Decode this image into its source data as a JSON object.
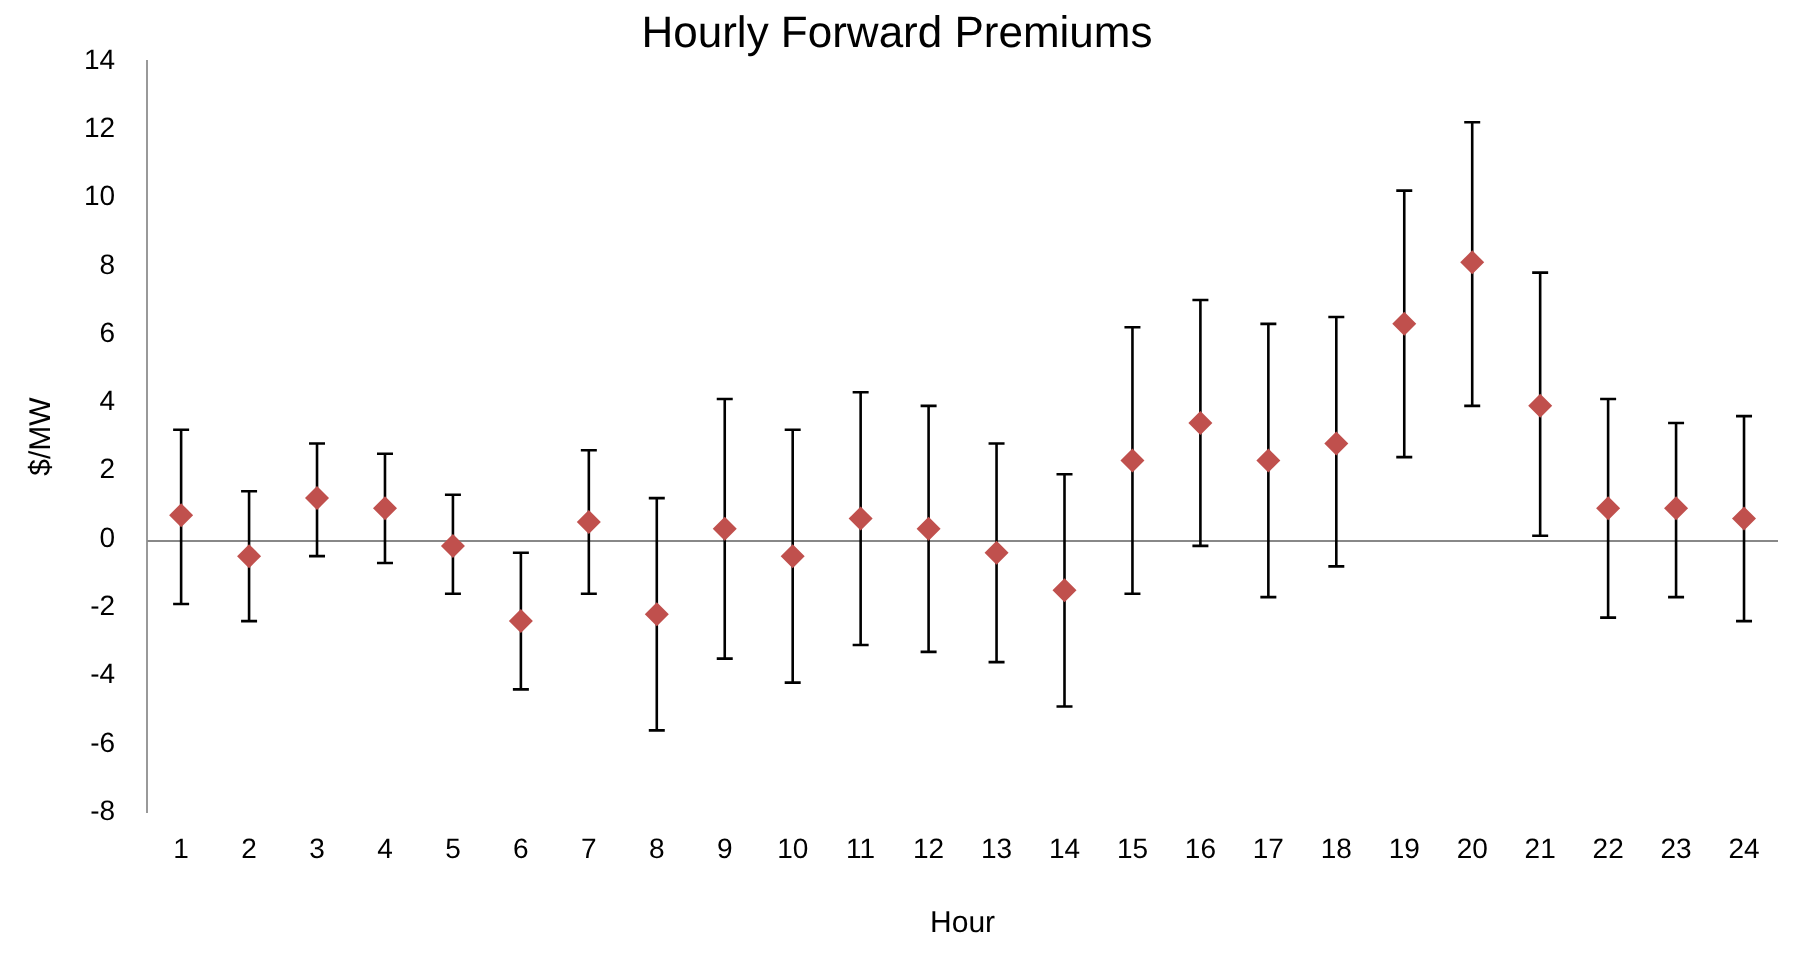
{
  "chart_data": {
    "type": "scatter",
    "title": "Hourly Forward Premiums",
    "xlabel": "Hour",
    "ylabel": "$/MW",
    "categories": [
      "1",
      "2",
      "3",
      "4",
      "5",
      "6",
      "7",
      "8",
      "9",
      "10",
      "11",
      "12",
      "13",
      "14",
      "15",
      "16",
      "17",
      "18",
      "19",
      "20",
      "21",
      "22",
      "23",
      "24"
    ],
    "series": [
      {
        "color": "#c0504d",
        "values": [
          0.7,
          -0.5,
          1.2,
          0.9,
          -0.2,
          -2.4,
          0.5,
          -2.2,
          0.3,
          -0.5,
          0.6,
          0.3,
          -0.4,
          -1.5,
          2.3,
          3.4,
          2.3,
          2.8,
          6.3,
          8.1,
          3.9,
          0.9,
          0.9,
          0.6
        ],
        "errors": [
          [
            -1.9,
            3.2
          ],
          [
            -2.4,
            1.4
          ],
          [
            -0.5,
            2.8
          ],
          [
            -0.7,
            2.5
          ],
          [
            -1.6,
            1.3
          ],
          [
            -4.4,
            -0.4
          ],
          [
            -1.6,
            2.6
          ],
          [
            -5.6,
            1.2
          ],
          [
            -3.5,
            4.1
          ],
          [
            -4.2,
            3.2
          ],
          [
            -3.1,
            4.3
          ],
          [
            -3.3,
            3.9
          ],
          [
            -3.6,
            2.8
          ],
          [
            -4.9,
            1.9
          ],
          [
            -1.6,
            6.2
          ],
          [
            -0.2,
            7.0
          ],
          [
            -1.7,
            6.3
          ],
          [
            -0.8,
            6.5
          ],
          [
            2.4,
            10.2
          ],
          [
            3.9,
            12.2
          ],
          [
            0.1,
            7.8
          ],
          [
            -2.3,
            4.1
          ],
          [
            -1.7,
            3.4
          ],
          [
            -2.4,
            3.6
          ]
        ]
      }
    ],
    "ylim": [
      -8,
      14
    ],
    "yticks": [
      -8,
      -6,
      -4,
      -2,
      0,
      2,
      4,
      6,
      8,
      10,
      12,
      14
    ],
    "ref_lines": [
      {
        "axis": "y",
        "value": 0,
        "color": "#888888"
      }
    ],
    "grid": false,
    "legend": false,
    "marker": "diamond"
  }
}
